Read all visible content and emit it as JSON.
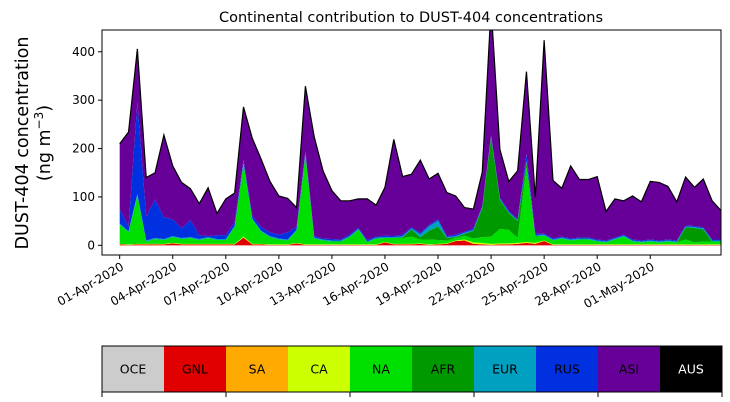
{
  "chart_data": {
    "type": "area",
    "stacked": true,
    "title": "Continental contribution to DUST-404 concentrations",
    "ylabel_line1": "DUST-404 concentration",
    "ylabel_line2_prefix": "(ng m",
    "ylabel_line2_sup": "−3",
    "ylabel_line2_suffix": ")",
    "ylim": [
      -20,
      445
    ],
    "xlim": [
      -1,
      34
    ],
    "yticks": [
      0,
      100,
      200,
      300,
      400
    ],
    "ytick_labels": [
      "0",
      "100",
      "200",
      "300",
      "400"
    ],
    "xticks": [
      0,
      3,
      6,
      9,
      12,
      15,
      18,
      21,
      24,
      27,
      30
    ],
    "xtick_labels": [
      "01-Apr-2020",
      "04-Apr-2020",
      "07-Apr-2020",
      "10-Apr-2020",
      "13-Apr-2020",
      "16-Apr-2020",
      "19-Apr-2020",
      "22-Apr-2020",
      "25-Apr-2020",
      "28-Apr-2020",
      "01-May-2020"
    ],
    "x": [
      0,
      0.5,
      1,
      1.5,
      2,
      2.5,
      3,
      3.5,
      4,
      4.5,
      5,
      5.5,
      6,
      6.5,
      7,
      7.5,
      8,
      8.5,
      9,
      9.5,
      10,
      10.5,
      11,
      11.5,
      12,
      12.5,
      13,
      13.5,
      14,
      14.5,
      15,
      15.5,
      16,
      16.5,
      17,
      17.5,
      18,
      18.5,
      19,
      19.5,
      20,
      20.5,
      21,
      21.5,
      22,
      22.5,
      23,
      23.5,
      24,
      24.5,
      25,
      25.5,
      26,
      26.5,
      27,
      27.5,
      28,
      28.5,
      29,
      29.5,
      30,
      30.5,
      31,
      31.5,
      32,
      32.5,
      33,
      33.5,
      34,
      34.5
    ],
    "series": [
      {
        "name": "OCE",
        "color": "#cccccc",
        "values": [
          0,
          0,
          0,
          0,
          0,
          0,
          0,
          0,
          0,
          0,
          0,
          0,
          0,
          0,
          0,
          0,
          0,
          0,
          0,
          0,
          0,
          0,
          0,
          0,
          0,
          0,
          0,
          0,
          0,
          0,
          0,
          0,
          0,
          0,
          0,
          0,
          0,
          0,
          0,
          0,
          0,
          0,
          0,
          0,
          0,
          0,
          0,
          0,
          0,
          0,
          0,
          0,
          0,
          0,
          0,
          0,
          0,
          0,
          0,
          0,
          0,
          0,
          0,
          0,
          0,
          0,
          0,
          0,
          0,
          0
        ]
      },
      {
        "name": "GNL",
        "color": "#e00000",
        "values": [
          2,
          1,
          2,
          2,
          2,
          2,
          4,
          2,
          2,
          2,
          2,
          2,
          2,
          2,
          16,
          2,
          2,
          1,
          1,
          1,
          4,
          1,
          1,
          1,
          1,
          1,
          1,
          1,
          1,
          1,
          6,
          2,
          2,
          2,
          3,
          1,
          2,
          3,
          9,
          10,
          3,
          2,
          1,
          2,
          2,
          3,
          5,
          3,
          9,
          1,
          1,
          1,
          1,
          1,
          1,
          1,
          1,
          1,
          1,
          1,
          1,
          1,
          1,
          1,
          1,
          1,
          1,
          1,
          1,
          1
        ]
      },
      {
        "name": "SA",
        "color": "#ffaa00",
        "values": [
          0,
          0,
          0,
          0,
          0,
          0,
          0,
          0,
          0,
          0,
          0,
          0,
          0,
          0,
          0,
          0,
          0,
          0,
          0,
          0,
          0,
          0,
          0,
          0,
          0,
          0,
          0,
          0,
          0,
          0,
          0,
          0,
          0,
          0,
          0,
          0,
          0,
          0,
          0,
          0,
          0,
          0,
          0,
          0,
          0,
          0,
          0,
          0,
          0,
          0,
          0,
          0,
          0,
          0,
          0,
          0,
          0,
          0,
          0,
          0,
          0,
          0,
          0,
          0,
          0,
          0,
          0,
          0,
          0,
          0
        ]
      },
      {
        "name": "CA",
        "color": "#ccff00",
        "values": [
          1,
          1,
          1,
          1,
          1,
          1,
          1,
          1,
          1,
          1,
          1,
          1,
          1,
          1,
          2,
          1,
          1,
          1,
          1,
          1,
          1,
          1,
          1,
          1,
          1,
          1,
          1,
          1,
          1,
          1,
          1,
          1,
          1,
          1,
          1,
          1,
          1,
          1,
          1,
          2,
          3,
          3,
          2,
          2,
          2,
          2,
          2,
          2,
          1,
          1,
          1,
          1,
          1,
          1,
          1,
          1,
          1,
          1,
          1,
          1,
          1,
          1,
          1,
          1,
          1,
          1,
          1,
          1,
          1,
          1
        ]
      },
      {
        "name": "NA",
        "color": "#00e000",
        "values": [
          40,
          25,
          100,
          5,
          10,
          8,
          12,
          10,
          12,
          8,
          12,
          8,
          8,
          35,
          150,
          50,
          25,
          15,
          10,
          8,
          25,
          185,
          12,
          8,
          6,
          6,
          15,
          30,
          4,
          12,
          8,
          12,
          12,
          15,
          8,
          10,
          8,
          6,
          5,
          8,
          8,
          12,
          15,
          30,
          28,
          10,
          155,
          12,
          10,
          8,
          12,
          8,
          10,
          10,
          6,
          4,
          10,
          16,
          6,
          4,
          6,
          4,
          6,
          4,
          10,
          4,
          6,
          6,
          6,
          6
        ]
      },
      {
        "name": "AFR",
        "color": "#009900",
        "values": [
          0,
          0,
          0,
          0,
          0,
          0,
          0,
          0,
          0,
          0,
          0,
          0,
          0,
          0,
          0,
          0,
          0,
          0,
          0,
          0,
          0,
          0,
          0,
          0,
          0,
          0,
          0,
          0,
          0,
          0,
          0,
          0,
          2,
          15,
          5,
          18,
          28,
          5,
          2,
          4,
          16,
          60,
          205,
          60,
          35,
          35,
          10,
          2,
          0,
          0,
          0,
          0,
          0,
          0,
          0,
          0,
          0,
          0,
          0,
          0,
          0,
          0,
          0,
          0,
          25,
          30,
          25,
          0,
          0,
          0
        ]
      },
      {
        "name": "EUR",
        "color": "#00a0c0",
        "values": [
          2,
          2,
          3,
          2,
          2,
          2,
          2,
          2,
          2,
          2,
          2,
          2,
          2,
          2,
          2,
          2,
          2,
          2,
          2,
          2,
          2,
          2,
          2,
          2,
          2,
          2,
          2,
          2,
          2,
          2,
          2,
          2,
          2,
          2,
          6,
          10,
          12,
          2,
          2,
          2,
          2,
          2,
          2,
          2,
          2,
          2,
          2,
          2,
          2,
          2,
          2,
          2,
          2,
          2,
          2,
          2,
          2,
          2,
          2,
          2,
          2,
          2,
          2,
          2,
          2,
          2,
          2,
          2,
          2,
          2
        ]
      },
      {
        "name": "RUS",
        "color": "#0030e0",
        "values": [
          30,
          10,
          190,
          50,
          80,
          45,
          35,
          20,
          35,
          8,
          2,
          8,
          8,
          8,
          6,
          6,
          8,
          8,
          8,
          15,
          6,
          5,
          3,
          2,
          3,
          2,
          3,
          2,
          3,
          2,
          3,
          2,
          3,
          2,
          3,
          2,
          3,
          2,
          3,
          2,
          3,
          2,
          3,
          2,
          3,
          2,
          15,
          3,
          2,
          2,
          2,
          2,
          2,
          2,
          2,
          2,
          2,
          2,
          2,
          2,
          2,
          2,
          2,
          2,
          2,
          2,
          2,
          2,
          2,
          2
        ]
      },
      {
        "name": "ASI",
        "color": "#660099",
        "values": [
          135,
          195,
          110,
          80,
          55,
          170,
          110,
          95,
          65,
          65,
          100,
          45,
          75,
          60,
          110,
          160,
          140,
          105,
          80,
          70,
          40,
          135,
          205,
          140,
          100,
          80,
          70,
          60,
          85,
          65,
          100,
          200,
          120,
          110,
          150,
          95,
          95,
          90,
          80,
          50,
          40,
          70,
          265,
          100,
          60,
          100,
          170,
          75,
          400,
          120,
          100,
          150,
          120,
          120,
          130,
          60,
          80,
          70,
          90,
          80,
          120,
          120,
          110,
          80,
          100,
          80,
          100,
          80,
          60,
          50
        ]
      },
      {
        "name": "AUS",
        "color": "#000000",
        "values": [
          0,
          0,
          0,
          0,
          0,
          0,
          0,
          0,
          0,
          0,
          0,
          0,
          0,
          0,
          0,
          0,
          0,
          0,
          0,
          0,
          0,
          0,
          0,
          0,
          0,
          0,
          0,
          0,
          0,
          0,
          0,
          0,
          0,
          0,
          0,
          0,
          0,
          0,
          0,
          0,
          0,
          0,
          0,
          0,
          0,
          0,
          0,
          0,
          0,
          0,
          0,
          0,
          0,
          0,
          0,
          0,
          0,
          0,
          0,
          0,
          0,
          0,
          0,
          0,
          0,
          0,
          0,
          0,
          0,
          0
        ]
      }
    ],
    "legend_placement": "bottom",
    "grid": false
  }
}
